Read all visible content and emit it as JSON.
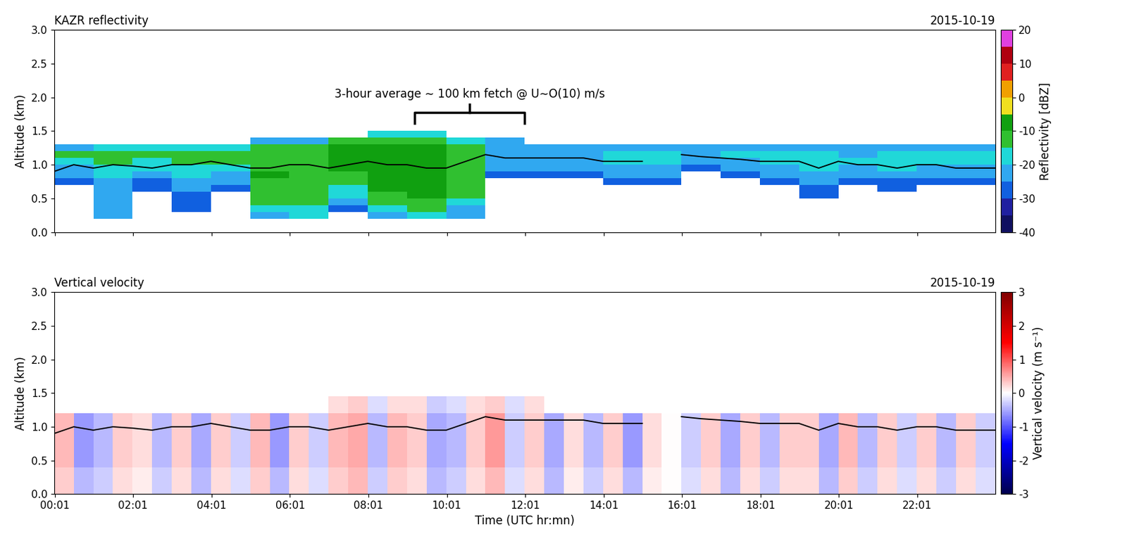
{
  "chart_data": [
    {
      "type": "heatmap",
      "title": "KAZR reflectivity",
      "subtitle": "2015-10-19",
      "y_label": "Altitude (km)",
      "tick_labels": "y",
      "xlim": [
        0,
        24
      ],
      "xticks": [
        {
          "value": 0.017,
          "label": "00:01"
        },
        {
          "value": 2.017,
          "label": "02:01"
        },
        {
          "value": 4.017,
          "label": "04:01"
        },
        {
          "value": 6.017,
          "label": "06:01"
        },
        {
          "value": 8.017,
          "label": "08:01"
        },
        {
          "value": 10.017,
          "label": "10:01"
        },
        {
          "value": 12.017,
          "label": "12:01"
        },
        {
          "value": 14.017,
          "label": "14:01"
        },
        {
          "value": 16.017,
          "label": "16:01"
        },
        {
          "value": 18.017,
          "label": "18:01"
        },
        {
          "value": 20.017,
          "label": "20:01"
        },
        {
          "value": 22.017,
          "label": "22:01"
        }
      ],
      "ylim": [
        0,
        3
      ],
      "yticks": [
        {
          "value": 0,
          "label": "0.0"
        },
        {
          "value": 0.5,
          "label": "0.5"
        },
        {
          "value": 1,
          "label": "1.0"
        },
        {
          "value": 1.5,
          "label": "1.5"
        },
        {
          "value": 2,
          "label": "2.0"
        },
        {
          "value": 2.5,
          "label": "2.5"
        },
        {
          "value": 3,
          "label": "3.0"
        }
      ],
      "time_edges": [
        0,
        1,
        2,
        3,
        4,
        5,
        6,
        7,
        8,
        9,
        10,
        11,
        12,
        13,
        14,
        15,
        16,
        17,
        18,
        19,
        20,
        21,
        22,
        23,
        24
      ],
      "altitude_edges": [
        0,
        0.1,
        0.2,
        0.3,
        0.4,
        0.5,
        0.6,
        0.7,
        0.8,
        0.9,
        1.0,
        1.1,
        1.2,
        1.3,
        1.4,
        1.5
      ],
      "cells_by_time": [
        [
          null,
          null,
          null,
          null,
          null,
          null,
          null,
          -30,
          -25,
          -22,
          -18,
          -15,
          -22,
          null,
          null
        ],
        [
          null,
          null,
          -25,
          -25,
          -25,
          -25,
          -25,
          -22,
          -20,
          -18,
          -15,
          -15,
          -20,
          null,
          null
        ],
        [
          null,
          null,
          null,
          null,
          null,
          null,
          -30,
          -28,
          -25,
          -20,
          -18,
          -15,
          -20,
          null,
          null
        ],
        [
          null,
          null,
          null,
          -30,
          -28,
          -28,
          -25,
          -22,
          -20,
          -18,
          -15,
          -15,
          -20,
          null,
          null
        ],
        [
          null,
          null,
          null,
          null,
          null,
          null,
          -30,
          -25,
          -22,
          -18,
          -15,
          -13,
          -18,
          null,
          null
        ],
        [
          null,
          null,
          -22,
          -18,
          -15,
          -15,
          -12,
          -12,
          -10,
          -12,
          -12,
          -12,
          -15,
          -25,
          null
        ],
        [
          null,
          null,
          -20,
          -18,
          -15,
          -15,
          -15,
          -14,
          -14,
          -14,
          -13,
          -13,
          -15,
          -25,
          null
        ],
        [
          null,
          null,
          null,
          -30,
          -25,
          -20,
          -18,
          -15,
          -12,
          -10,
          -10,
          -10,
          -10,
          -15,
          null
        ],
        [
          null,
          null,
          -25,
          -20,
          -15,
          -12,
          -10,
          -8,
          -8,
          -8,
          -8,
          -8,
          -10,
          -12,
          -20
        ],
        [
          null,
          null,
          -20,
          -15,
          -12,
          -10,
          -8,
          -8,
          -8,
          -8,
          -8,
          -8,
          -10,
          -12,
          -20
        ],
        [
          null,
          null,
          -25,
          -22,
          -18,
          -15,
          -14,
          -12,
          -12,
          -12,
          -12,
          -13,
          -15,
          -20,
          null
        ],
        [
          null,
          null,
          null,
          null,
          null,
          null,
          null,
          null,
          -30,
          -25,
          -22,
          -22,
          -22,
          -25,
          null
        ],
        [
          null,
          null,
          null,
          null,
          null,
          null,
          null,
          null,
          -28,
          -25,
          -22,
          -22,
          -25,
          null,
          null
        ],
        [
          null,
          null,
          null,
          null,
          null,
          null,
          null,
          null,
          -30,
          -25,
          -22,
          -22,
          -25,
          null,
          null
        ],
        [
          null,
          null,
          null,
          null,
          null,
          null,
          null,
          -28,
          -25,
          -22,
          -20,
          -20,
          -22,
          null,
          null
        ],
        [
          null,
          null,
          null,
          null,
          null,
          null,
          null,
          -28,
          -25,
          -22,
          -20,
          -20,
          -25,
          null,
          null
        ],
        [
          null,
          null,
          null,
          null,
          null,
          null,
          null,
          null,
          null,
          -28,
          -25,
          -22,
          -25,
          null,
          null
        ],
        [
          null,
          null,
          null,
          null,
          null,
          null,
          null,
          null,
          -30,
          -25,
          -22,
          -20,
          -25,
          null,
          null
        ],
        [
          null,
          null,
          null,
          null,
          null,
          null,
          null,
          -28,
          -25,
          -22,
          -20,
          -20,
          -25,
          null,
          null
        ],
        [
          null,
          null,
          null,
          null,
          null,
          -30,
          -28,
          -25,
          -22,
          -20,
          -18,
          -20,
          -25,
          null,
          null
        ],
        [
          null,
          null,
          null,
          null,
          null,
          null,
          null,
          -30,
          -25,
          -22,
          -20,
          -22,
          -25,
          null,
          null
        ],
        [
          null,
          null,
          null,
          null,
          null,
          null,
          -30,
          -28,
          -25,
          -20,
          -18,
          -18,
          -22,
          null,
          null
        ],
        [
          null,
          null,
          null,
          null,
          null,
          null,
          null,
          -28,
          -25,
          -22,
          -20,
          -20,
          -25,
          null,
          null
        ],
        [
          null,
          null,
          null,
          null,
          null,
          null,
          null,
          -28,
          -25,
          -22,
          -20,
          -20,
          -25,
          null,
          null
        ]
      ],
      "colorbar": {
        "label": "Reflectivity [dBZ]",
        "range": [
          -40,
          20
        ],
        "ticks": [
          -40,
          -30,
          -20,
          -10,
          0,
          10,
          20
        ]
      },
      "line": {
        "color": "black",
        "x": [
          0,
          0.5,
          1,
          1.5,
          2,
          2.5,
          3,
          3.5,
          4,
          4.5,
          5,
          5.5,
          6,
          6.5,
          7,
          7.5,
          8,
          8.5,
          9,
          9.5,
          10,
          10.5,
          11,
          11.5,
          12,
          12.5,
          13,
          13.5,
          14,
          14.5,
          15,
          15.5,
          16,
          16.5,
          17,
          17.5,
          18,
          18.5,
          19,
          19.5,
          20,
          20.5,
          21,
          21.5,
          22,
          22.5,
          23,
          23.5,
          24
        ],
        "values": [
          0.9,
          1.0,
          0.95,
          1.0,
          0.98,
          0.95,
          1.0,
          1.0,
          1.05,
          1.0,
          0.95,
          0.95,
          1.0,
          1.0,
          0.95,
          1.0,
          1.05,
          1.0,
          1.0,
          0.95,
          0.95,
          1.05,
          1.15,
          1.1,
          1.1,
          1.1,
          1.1,
          1.1,
          1.05,
          1.05,
          1.05,
          null,
          1.15,
          1.12,
          1.1,
          1.08,
          1.05,
          1.05,
          1.05,
          0.95,
          1.05,
          1.0,
          1.0,
          0.95,
          1.0,
          1.0,
          0.95,
          0.95,
          0.95
        ]
      },
      "annotation": {
        "text": "3-hour average ∼ 100 km fetch @ U∼O(10) m/s",
        "span": [
          9.2,
          12.0
        ]
      }
    },
    {
      "type": "heatmap",
      "title": "Vertical velocity",
      "subtitle": "2015-10-19",
      "x_label": "Time (UTC hr:mn)",
      "y_label": "Altitude (km)",
      "xlim": [
        0,
        24
      ],
      "xticks": [
        {
          "value": 0.017,
          "label": "00:01"
        },
        {
          "value": 2.017,
          "label": "02:01"
        },
        {
          "value": 4.017,
          "label": "04:01"
        },
        {
          "value": 6.017,
          "label": "06:01"
        },
        {
          "value": 8.017,
          "label": "08:01"
        },
        {
          "value": 10.017,
          "label": "10:01"
        },
        {
          "value": 12.017,
          "label": "12:01"
        },
        {
          "value": 14.017,
          "label": "14:01"
        },
        {
          "value": 16.017,
          "label": "16:01"
        },
        {
          "value": 18.017,
          "label": "18:01"
        },
        {
          "value": 20.017,
          "label": "20:01"
        },
        {
          "value": 22.017,
          "label": "22:01"
        }
      ],
      "ylim": [
        0,
        3
      ],
      "yticks": [
        {
          "value": 0,
          "label": "0.0"
        },
        {
          "value": 0.5,
          "label": "0.5"
        },
        {
          "value": 1,
          "label": "1.0"
        },
        {
          "value": 1.5,
          "label": "1.5"
        },
        {
          "value": 2,
          "label": "2.0"
        },
        {
          "value": 2.5,
          "label": "2.5"
        },
        {
          "value": 3,
          "label": "3.0"
        }
      ],
      "time_edges": [
        0,
        0.5,
        1,
        1.5,
        2,
        2.5,
        3,
        3.5,
        4,
        4.5,
        5,
        5.5,
        6,
        6.5,
        7,
        7.5,
        8,
        8.5,
        9,
        9.5,
        10,
        10.5,
        11,
        11.5,
        12,
        12.5,
        13,
        13.5,
        14,
        14.5,
        15,
        15.5,
        16,
        16.5,
        17,
        17.5,
        18,
        18.5,
        19,
        19.5,
        20,
        20.5,
        21,
        21.5,
        22,
        22.5,
        23,
        23.5,
        24
      ],
      "altitude_edges": [
        0,
        0.4,
        0.8,
        1.2,
        1.45
      ],
      "cells_by_time": [
        [
          0.3,
          0.4,
          0.4,
          null
        ],
        [
          -0.4,
          -0.6,
          -0.6,
          null
        ],
        [
          -0.3,
          -0.4,
          -0.4,
          null
        ],
        [
          0.2,
          0.3,
          0.3,
          null
        ],
        [
          0.1,
          0.2,
          0.2,
          null
        ],
        [
          -0.3,
          -0.4,
          -0.4,
          null
        ],
        [
          0.2,
          0.3,
          0.3,
          null
        ],
        [
          -0.4,
          -0.5,
          -0.5,
          null
        ],
        [
          0.2,
          0.3,
          0.3,
          null
        ],
        [
          -0.2,
          -0.3,
          -0.3,
          null
        ],
        [
          0.3,
          0.4,
          0.4,
          null
        ],
        [
          -0.4,
          -0.6,
          -0.6,
          null
        ],
        [
          0.2,
          0.3,
          0.3,
          null
        ],
        [
          -0.2,
          -0.3,
          -0.3,
          null
        ],
        [
          0.3,
          0.4,
          0.4,
          0.2
        ],
        [
          0.4,
          0.5,
          0.5,
          0.3
        ],
        [
          -0.3,
          -0.4,
          -0.4,
          -0.2
        ],
        [
          0.3,
          0.4,
          0.4,
          0.2
        ],
        [
          0.2,
          0.3,
          0.3,
          0.2
        ],
        [
          -0.4,
          -0.5,
          -0.5,
          -0.3
        ],
        [
          -0.3,
          -0.4,
          -0.4,
          -0.2
        ],
        [
          0.2,
          0.3,
          0.3,
          0.2
        ],
        [
          0.4,
          0.6,
          0.6,
          0.3
        ],
        [
          -0.2,
          -0.3,
          -0.3,
          -0.2
        ],
        [
          0.2,
          0.3,
          0.3,
          0.2
        ],
        [
          -0.4,
          -0.5,
          -0.5,
          null
        ],
        [
          0.1,
          0.2,
          0.2,
          null
        ],
        [
          -0.3,
          -0.4,
          -0.4,
          null
        ],
        [
          0.2,
          0.3,
          0.3,
          null
        ],
        [
          -0.4,
          -0.6,
          -0.6,
          null
        ],
        [
          0.1,
          0.2,
          0.2,
          null
        ],
        [
          0.0,
          0.0,
          0.0,
          null
        ],
        [
          -0.2,
          -0.3,
          -0.3,
          null
        ],
        [
          0.2,
          0.3,
          0.3,
          null
        ],
        [
          -0.4,
          -0.5,
          -0.5,
          null
        ],
        [
          0.2,
          0.3,
          0.3,
          null
        ],
        [
          -0.3,
          -0.4,
          -0.4,
          null
        ],
        [
          0.2,
          0.3,
          0.3,
          null
        ],
        [
          0.2,
          0.3,
          0.3,
          null
        ],
        [
          -0.4,
          -0.5,
          -0.5,
          null
        ],
        [
          0.3,
          0.4,
          0.4,
          null
        ],
        [
          -0.3,
          -0.4,
          -0.4,
          null
        ],
        [
          0.2,
          0.3,
          0.3,
          null
        ],
        [
          -0.2,
          -0.3,
          -0.3,
          null
        ],
        [
          0.2,
          0.3,
          0.3,
          null
        ],
        [
          -0.3,
          -0.4,
          -0.4,
          null
        ],
        [
          0.2,
          0.3,
          0.3,
          null
        ],
        [
          -0.2,
          -0.3,
          -0.3,
          null
        ]
      ],
      "colorbar": {
        "label": "Vertical velocity (m s⁻¹)",
        "range": [
          -3,
          3
        ],
        "ticks": [
          -3,
          -2,
          -1,
          0,
          1,
          2,
          3
        ]
      },
      "line": {
        "color": "black",
        "x": [
          0,
          0.5,
          1,
          1.5,
          2,
          2.5,
          3,
          3.5,
          4,
          4.5,
          5,
          5.5,
          6,
          6.5,
          7,
          7.5,
          8,
          8.5,
          9,
          9.5,
          10,
          10.5,
          11,
          11.5,
          12,
          12.5,
          13,
          13.5,
          14,
          14.5,
          15,
          15.5,
          16,
          16.5,
          17,
          17.5,
          18,
          18.5,
          19,
          19.5,
          20,
          20.5,
          21,
          21.5,
          22,
          22.5,
          23,
          23.5,
          24
        ],
        "values": [
          0.9,
          1.0,
          0.95,
          1.0,
          0.98,
          0.95,
          1.0,
          1.0,
          1.05,
          1.0,
          0.95,
          0.95,
          1.0,
          1.0,
          0.95,
          1.0,
          1.05,
          1.0,
          1.0,
          0.95,
          0.95,
          1.05,
          1.15,
          1.1,
          1.1,
          1.1,
          1.1,
          1.1,
          1.05,
          1.05,
          1.05,
          null,
          1.15,
          1.12,
          1.1,
          1.08,
          1.05,
          1.05,
          1.05,
          0.95,
          1.05,
          1.0,
          1.0,
          0.95,
          1.0,
          1.0,
          0.95,
          0.95,
          0.95
        ]
      }
    }
  ]
}
